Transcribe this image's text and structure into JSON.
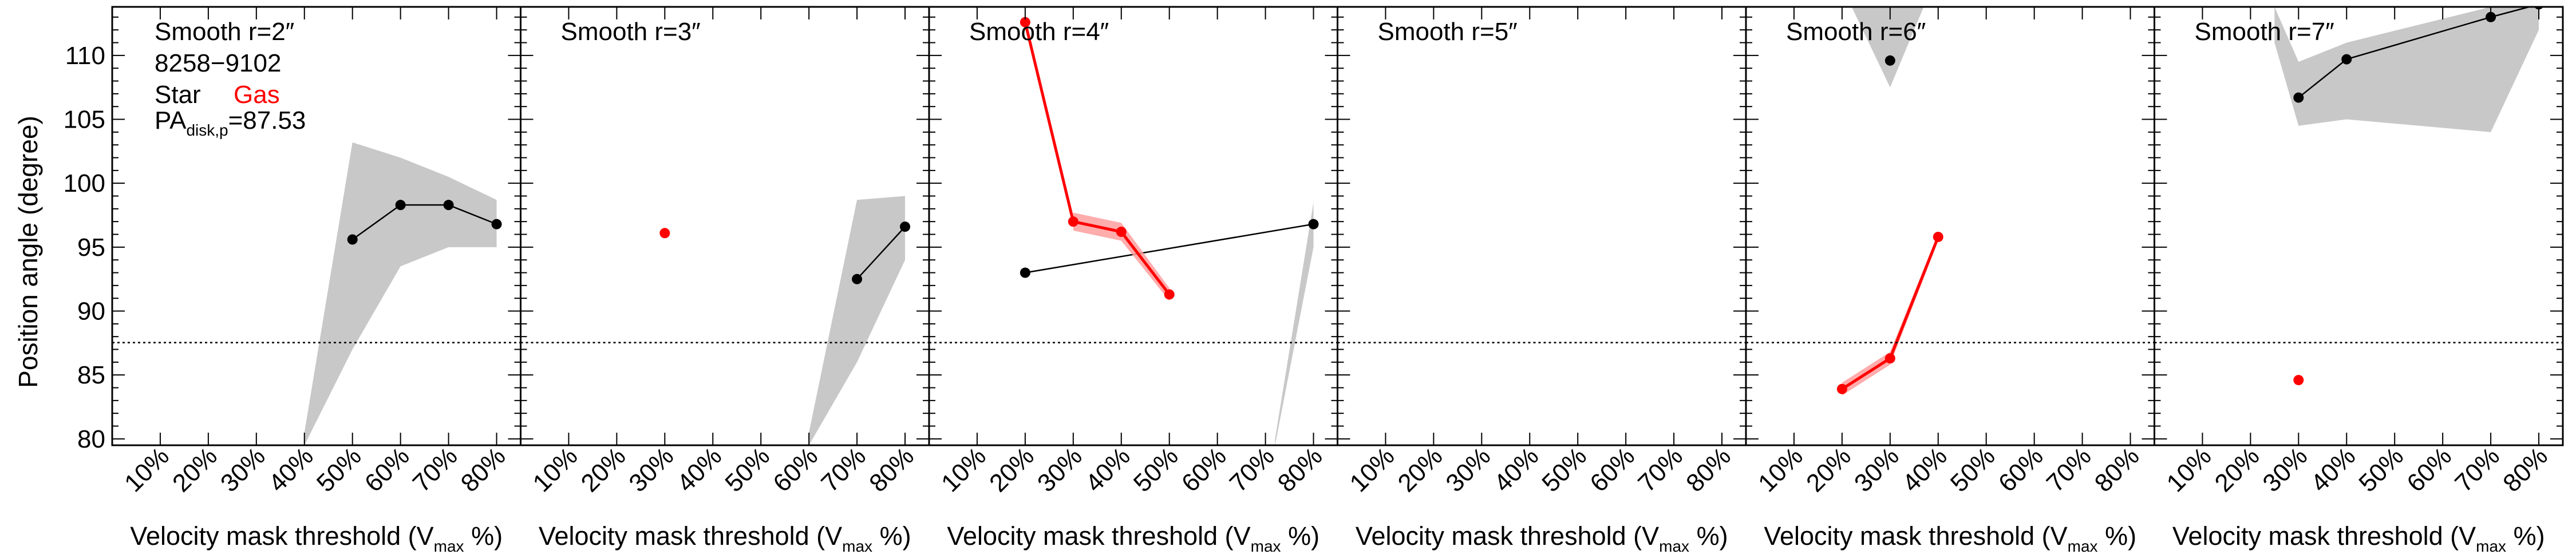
{
  "figure": {
    "ylabel": "Position angle (degree)",
    "xlabel_main": "Velocity mask threshold (V",
    "xlabel_sub": "max",
    "xlabel_end": " %)",
    "galaxy_id": "8258−9102",
    "legend": {
      "star": "Star",
      "gas": "Gas"
    },
    "pa_label_main": "PA",
    "pa_label_sub": "disk,p",
    "pa_label_value": "=87.53",
    "colors": {
      "star": "#000000",
      "gas": "#ff0000",
      "star_band": "#c8c8c8",
      "gas_band": "#ff9e9e"
    }
  },
  "chart_data": [
    {
      "type": "line",
      "title": "Smooth r=2″",
      "categories": [
        "10%",
        "20%",
        "30%",
        "40%",
        "50%",
        "60%",
        "70%",
        "80%"
      ],
      "ylim": [
        79.5,
        113.8
      ],
      "ref_line_y": 87.53,
      "series": [
        {
          "name": "Star",
          "points": [
            [
              50,
              95.6
            ],
            [
              60,
              98.3
            ],
            [
              70,
              98.3
            ],
            [
              80,
              96.8
            ]
          ],
          "band": [
            [
              40,
              79.5,
              80.5
            ],
            [
              50,
              87.0,
              103.2
            ],
            [
              60,
              93.5,
              102.0
            ],
            [
              70,
              95.0,
              100.5
            ],
            [
              80,
              95.0,
              98.7
            ]
          ]
        }
      ]
    },
    {
      "type": "line",
      "title": "Smooth r=3″",
      "categories": [
        "10%",
        "20%",
        "30%",
        "40%",
        "50%",
        "60%",
        "70%",
        "80%"
      ],
      "ylim": [
        79.5,
        113.8
      ],
      "ref_line_y": 87.53,
      "series": [
        {
          "name": "Star",
          "points": [
            [
              70,
              92.5
            ],
            [
              80,
              96.6
            ]
          ],
          "band": [
            [
              60,
              79.5,
              80.5
            ],
            [
              70,
              86.0,
              98.7
            ],
            [
              80,
              94.0,
              99.0
            ]
          ]
        },
        {
          "name": "Gas",
          "points": [
            [
              30,
              96.1
            ]
          ]
        }
      ]
    },
    {
      "type": "line",
      "title": "Smooth r=4″",
      "categories": [
        "10%",
        "20%",
        "30%",
        "40%",
        "50%",
        "60%",
        "70%",
        "80%"
      ],
      "ylim": [
        79.5,
        113.8
      ],
      "ref_line_y": 87.53,
      "series": [
        {
          "name": "Star",
          "points": [
            [
              20,
              93.0
            ],
            [
              80,
              96.8
            ]
          ],
          "band": [
            [
              72,
              79.5,
              80.0
            ],
            [
              80,
              95.0,
              98.5
            ]
          ]
        },
        {
          "name": "Gas",
          "points": [
            [
              20,
              112.6
            ],
            [
              30,
              97.0
            ],
            [
              40,
              96.2
            ],
            [
              50,
              91.3
            ]
          ],
          "band": [
            [
              30,
              96.3,
              97.7
            ],
            [
              40,
              95.5,
              96.9
            ],
            [
              50,
              90.8,
              91.8
            ]
          ]
        }
      ]
    },
    {
      "type": "line",
      "title": "Smooth r=5″",
      "categories": [
        "10%",
        "20%",
        "30%",
        "40%",
        "50%",
        "60%",
        "70%",
        "80%"
      ],
      "ylim": [
        79.5,
        113.8
      ],
      "ref_line_y": 87.53,
      "series": []
    },
    {
      "type": "line",
      "title": "Smooth r=6″",
      "categories": [
        "10%",
        "20%",
        "30%",
        "40%",
        "50%",
        "60%",
        "70%",
        "80%"
      ],
      "ylim": [
        79.5,
        113.8
      ],
      "ref_line_y": 87.53,
      "series": [
        {
          "name": "Star",
          "points": [
            [
              30,
              109.6
            ]
          ],
          "band": [
            [
              22,
              113.8,
              113.8
            ],
            [
              30,
              107.5,
              113.8
            ],
            [
              37,
              113.8,
              113.8
            ]
          ]
        },
        {
          "name": "Gas",
          "points": [
            [
              20,
              83.9
            ],
            [
              30,
              86.3
            ],
            [
              40,
              95.8
            ]
          ],
          "band": [
            [
              20,
              83.4,
              84.4
            ],
            [
              30,
              85.8,
              86.8
            ],
            [
              40,
              95.5,
              96.1
            ]
          ]
        }
      ]
    },
    {
      "type": "line",
      "title": "Smooth r=7″",
      "categories": [
        "10%",
        "20%",
        "30%",
        "40%",
        "50%",
        "60%",
        "70%",
        "80%"
      ],
      "ylim": [
        79.5,
        113.8
      ],
      "ref_line_y": 87.53,
      "series": [
        {
          "name": "Star",
          "points": [
            [
              30,
              106.7
            ],
            [
              40,
              109.7
            ],
            [
              70,
              113.0
            ],
            [
              80,
              114.0
            ]
          ],
          "band": [
            [
              25,
              111.0,
              113.8
            ],
            [
              30,
              104.5,
              109.5
            ],
            [
              40,
              105.0,
              111.0
            ],
            [
              70,
              104.0,
              113.8
            ],
            [
              80,
              112.0,
              113.8
            ]
          ]
        },
        {
          "name": "Gas",
          "points": [
            [
              30,
              84.6
            ]
          ]
        }
      ]
    }
  ]
}
